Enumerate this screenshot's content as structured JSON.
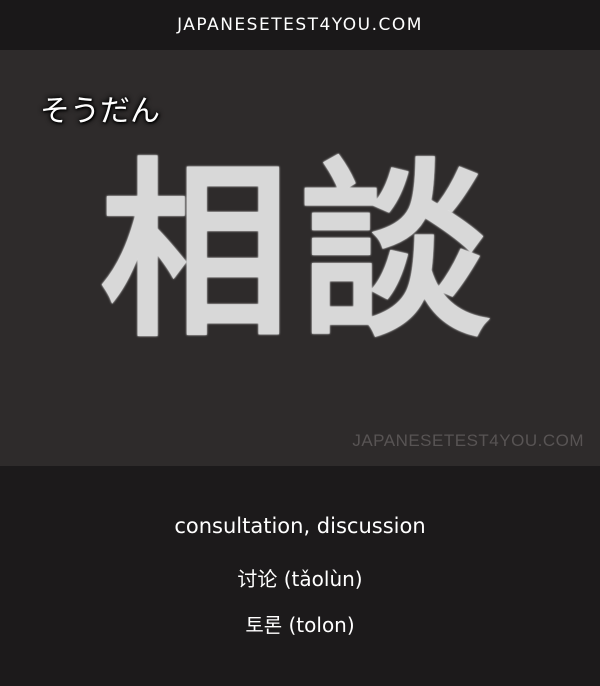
{
  "header": {
    "site": "JAPANESETEST4YOU.COM"
  },
  "card": {
    "reading": "そうだん",
    "kanji": "相談",
    "watermark": "JAPANESETEST4YOU.COM"
  },
  "translations": {
    "english": "consultation, discussion",
    "chinese": "讨论 (tǎolùn)",
    "korean": "토론 (tolon)"
  },
  "colors": {
    "header_bg": "#1a1819",
    "board_bg": "#2e2b2b",
    "footer_bg": "#1c1a1b",
    "text": "#ffffff",
    "watermark": "#585454"
  }
}
